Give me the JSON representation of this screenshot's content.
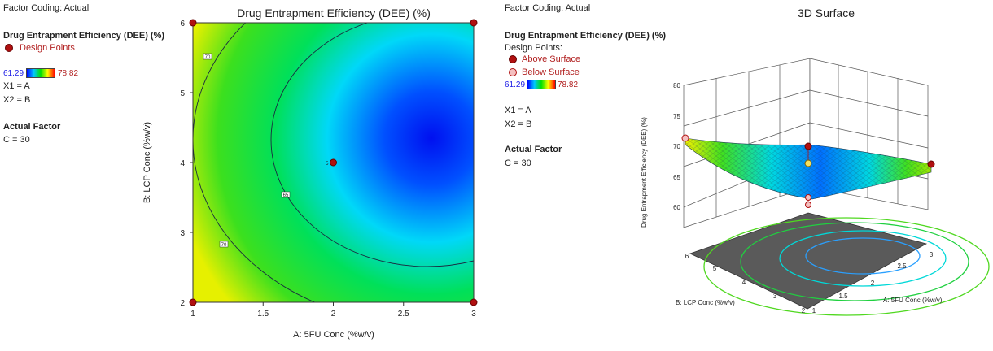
{
  "left_panel": {
    "factor_coding": "Factor Coding: Actual",
    "response_title": "Drug Entrapment Efficiency (DEE) (%)",
    "design_points_label": "Design Points",
    "range_min": "61.29",
    "range_max": "78.82",
    "x1": "X1 = A",
    "x2": "X2 = B",
    "actual_factor_title": "Actual Factor",
    "actual_factor_value": "C = 30"
  },
  "right_panel": {
    "factor_coding": "Factor Coding: Actual",
    "response_title": "Drug Entrapment Efficiency (DEE) (%)",
    "design_points_label": "Design Points:",
    "above_label": "Above Surface",
    "below_label": "Below Surface",
    "range_min": "61.29",
    "range_max": "78.82",
    "x1": "X1 = A",
    "x2": "X2 = B",
    "actual_factor_title": "Actual Factor",
    "actual_factor_value": "C = 30"
  },
  "colors": {
    "design_point": "#b01010",
    "below_point": "#f4c0c0",
    "low": "#0000ff",
    "high": "#ff0000"
  },
  "chart_data": [
    {
      "type": "heatmap",
      "subtype": "contour",
      "title": "Drug Entrapment Efficiency (DEE) (%)",
      "xlabel": "A: 5FU Conc (%w/v)",
      "ylabel": "B: LCP Conc (%w/v)",
      "xlim": [
        1,
        3
      ],
      "ylim": [
        2,
        6
      ],
      "xticks": [
        "1",
        "1.5",
        "2",
        "2.5",
        "3"
      ],
      "yticks": [
        "2",
        "3",
        "4",
        "5",
        "6"
      ],
      "contour_levels": [
        "65",
        "70",
        "70"
      ],
      "design_points": [
        {
          "x": 1,
          "y": 2
        },
        {
          "x": 1,
          "y": 6
        },
        {
          "x": 3,
          "y": 2
        },
        {
          "x": 3,
          "y": 6
        },
        {
          "x": 2,
          "y": 4,
          "label": "5"
        }
      ],
      "color_range": [
        61.29,
        78.82
      ],
      "grid": false
    },
    {
      "type": "surface",
      "title": "3D Surface",
      "zlabel": "Drug Entrapment Efficiency (DEE) (%)",
      "xlabel": "A: 5FU Conc (%w/v)",
      "ylabel": "B: LCP Conc (%w/v)",
      "zlim": [
        60,
        80
      ],
      "zticks": [
        "60",
        "65",
        "70",
        "75",
        "80"
      ],
      "xticks": [
        "1",
        "1.5",
        "2",
        "2.5",
        "3"
      ],
      "yticks": [
        "2",
        "3",
        "4",
        "5",
        "6"
      ],
      "color_range": [
        61.29,
        78.82
      ]
    }
  ]
}
